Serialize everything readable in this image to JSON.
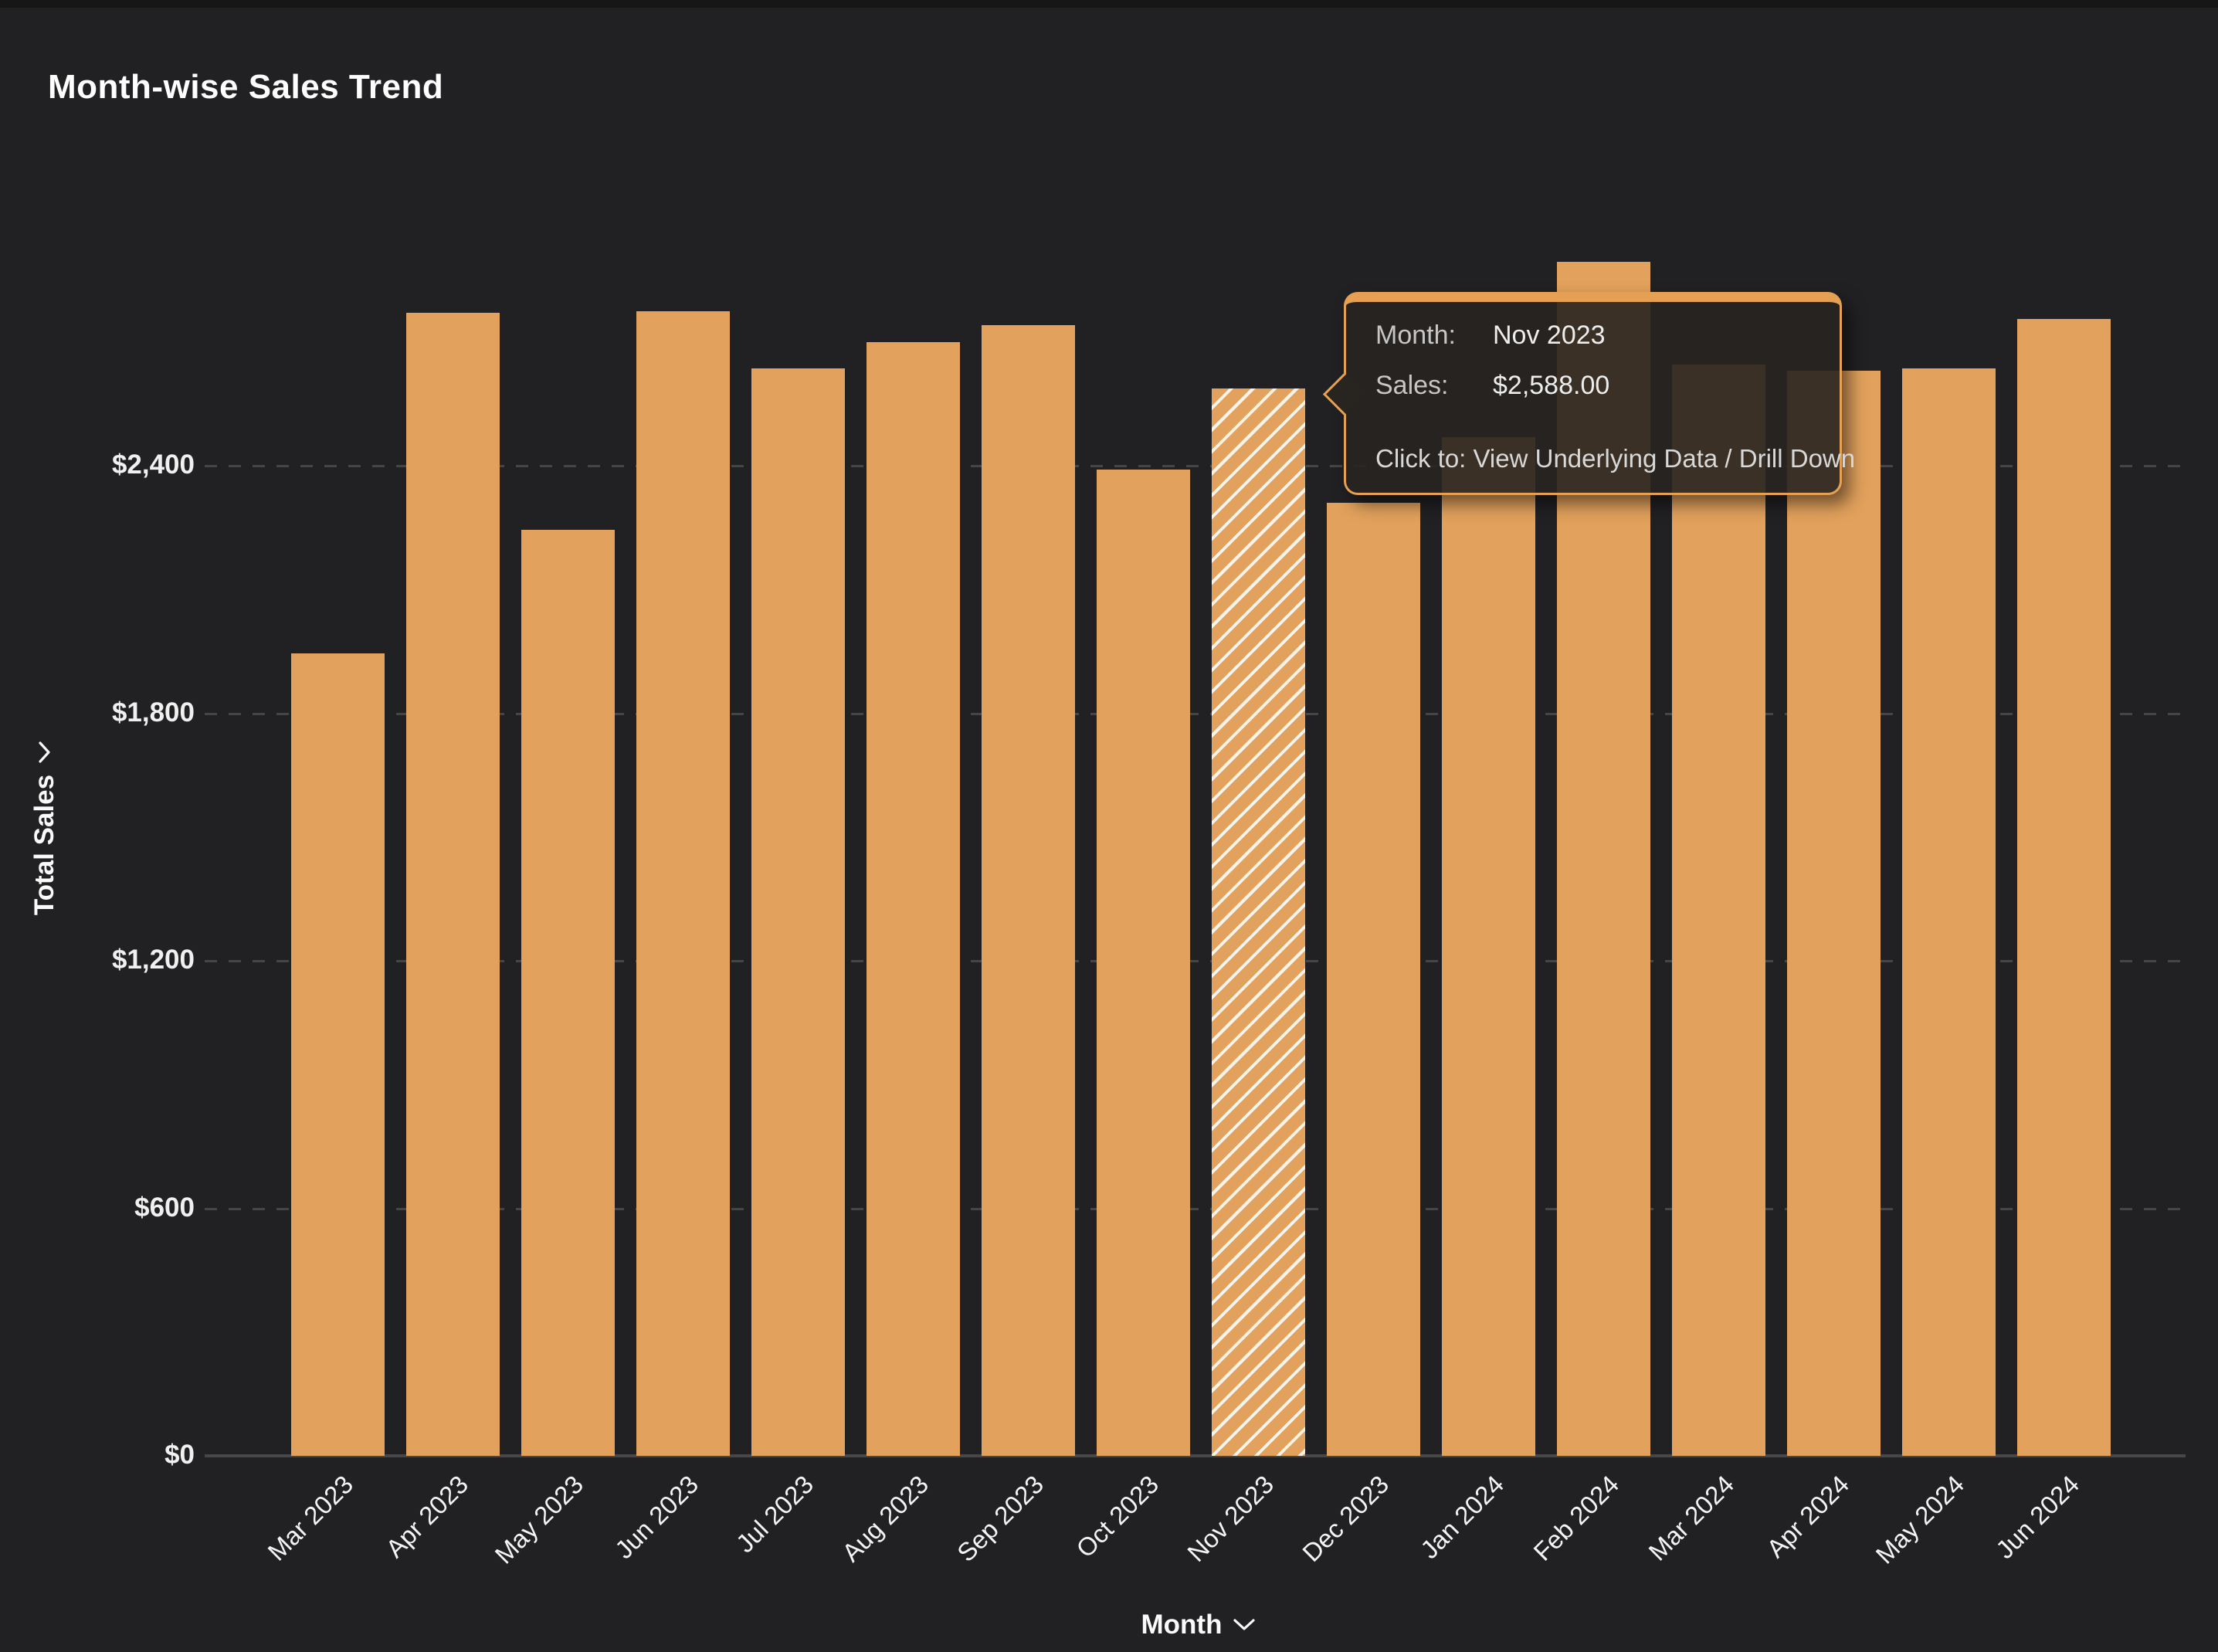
{
  "page": {
    "title": "Month-wise Sales Trend"
  },
  "colors": {
    "background": "#212123",
    "bar": "#E2A15C",
    "hatch_stripe": "#F8F4EC",
    "gridline": "#464646",
    "axis_line": "#474747",
    "tooltip_border": "#E5A053",
    "tooltip_background": "rgba(40,36,32,0.9)",
    "text": "#FFFFFF"
  },
  "y_axis": {
    "title": "Total Sales",
    "tick_labels": [
      "$2,400",
      "$1,800",
      "$1,200",
      "$600",
      "$0"
    ],
    "tick_values": [
      2400,
      1800,
      1200,
      600,
      0
    ]
  },
  "x_axis": {
    "title": "Month"
  },
  "tooltip": {
    "rows": [
      {
        "label": "Month:",
        "value": "Nov 2023"
      },
      {
        "label": "Sales:",
        "value": "$2,588.00"
      }
    ],
    "action": "Click to: View Underlying Data / Drill Down"
  },
  "chart_data": {
    "type": "bar",
    "title": "Month-wise Sales Trend",
    "xlabel": "Month",
    "ylabel": "Total Sales",
    "categories": [
      "Mar 2023",
      "Apr 2023",
      "May 2023",
      "Jun 2023",
      "Jul 2023",
      "Aug 2023",
      "Sep 2023",
      "Oct 2023",
      "Nov 2023",
      "Dec 2023",
      "Jan 2024",
      "Feb 2024",
      "Mar 2024",
      "Apr 2024",
      "May 2024",
      "Jun 2024"
    ],
    "values": [
      1945,
      2770,
      2245,
      2775,
      2635,
      2700,
      2740,
      2390,
      2588,
      2310,
      2470,
      2895,
      2645,
      2630,
      2635,
      2755
    ],
    "ylim": [
      0,
      3000
    ],
    "ytick_step": 600,
    "grid": "horizontal-dashed",
    "legend": "none",
    "bar_color": "#E2A15C",
    "highlighted_index": 8,
    "highlighted_style": "white-diagonal-hatch",
    "tooltip_month": "Nov 2023",
    "tooltip_sales": 2588.0
  }
}
